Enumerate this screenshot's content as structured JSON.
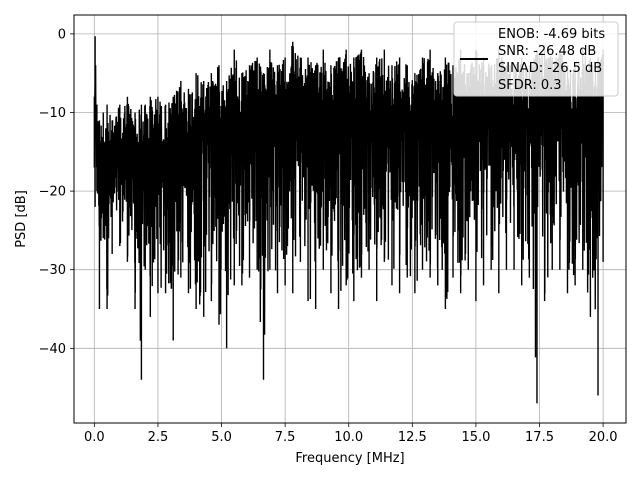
{
  "chart_data": {
    "type": "line",
    "title": "",
    "xlabel": "Frequency [MHz]",
    "ylabel": "PSD [dB]",
    "xlim": [
      -0.8,
      20.9
    ],
    "ylim": [
      -49.5,
      2.4
    ],
    "xticks": [
      0.0,
      2.5,
      5.0,
      7.5,
      10.0,
      12.5,
      15.0,
      17.5,
      20.0
    ],
    "xtick_labels": [
      "0.0",
      "2.5",
      "5.0",
      "7.5",
      "10.0",
      "12.5",
      "15.0",
      "17.5",
      "20.0"
    ],
    "yticks": [
      0,
      -10,
      -20,
      -30,
      -40
    ],
    "ytick_labels": [
      "0",
      "−10",
      "−20",
      "−30",
      "−40"
    ],
    "grid": true,
    "legend_position": "top-right",
    "line_color": "#000000",
    "series": [
      {
        "name": "ENOB: -4.69 bits\nSNR: -26.48 dB\nSINAD: -26.5 dB\nSFDR: 0.3",
        "legend_lines": [
          "ENOB: -4.69 bits",
          "SNR: -26.48 dB",
          "SINAD: -26.5 dB",
          "SFDR: 0.3"
        ],
        "x": [
          0.0,
          0.03,
          0.1,
          0.2,
          0.35,
          0.5,
          0.7,
          1.0,
          1.3,
          1.6,
          1.85,
          2.0,
          2.2,
          2.5,
          2.8,
          3.1,
          3.4,
          3.7,
          4.0,
          4.3,
          4.6,
          4.9,
          5.2,
          5.5,
          5.8,
          6.1,
          6.4,
          6.65,
          6.9,
          7.2,
          7.5,
          7.8,
          8.1,
          8.4,
          8.7,
          9.0,
          9.3,
          9.6,
          9.9,
          10.2,
          10.5,
          10.8,
          11.1,
          11.4,
          11.7,
          12.0,
          12.3,
          12.6,
          12.9,
          13.2,
          13.5,
          13.8,
          14.1,
          14.4,
          14.7,
          15.0,
          15.3,
          15.6,
          15.9,
          16.2,
          16.5,
          16.8,
          17.1,
          17.4,
          17.7,
          18.0,
          18.3,
          18.6,
          18.9,
          19.2,
          19.5,
          19.8,
          20.0
        ],
        "upper": [
          -8,
          -0.3,
          -9,
          -11,
          -10,
          -9,
          -11,
          -9,
          -8,
          -10,
          -9,
          -9,
          -8,
          -8,
          -9,
          -8,
          -6,
          -7,
          -5,
          -6,
          -5,
          -4,
          -6,
          -2,
          -5,
          -4,
          -3,
          -5,
          -2,
          -4,
          -3,
          -1,
          -3,
          -3,
          -4,
          -2,
          -4,
          -3,
          -2,
          -3,
          -2,
          -5,
          -3,
          -2,
          -4,
          -3,
          -4,
          -5,
          -3,
          -2,
          -5,
          -3,
          -4,
          -2,
          -5,
          -2,
          -3,
          -4,
          -2,
          -4,
          -4,
          -3,
          -4,
          -2,
          -2,
          -3,
          -2,
          -4,
          -4,
          -2,
          -3,
          -3,
          -2
        ],
        "lower": [
          -17,
          -22,
          -20,
          -35,
          -26,
          -35,
          -28,
          -27,
          -29,
          -35,
          -44,
          -30,
          -36,
          -33,
          -33,
          -39,
          -31,
          -33,
          -35,
          -36,
          -34,
          -37,
          -40,
          -32,
          -32,
          -31,
          -30,
          -44,
          -30,
          -33,
          -32,
          -33,
          -29,
          -34,
          -35,
          -30,
          -33,
          -35,
          -32,
          -34,
          -31,
          -30,
          -34,
          -29,
          -32,
          -33,
          -31,
          -33,
          -30,
          -31,
          -32,
          -35,
          -31,
          -33,
          -30,
          -34,
          -32,
          -30,
          -33,
          -30,
          -30,
          -32,
          -31,
          -47,
          -34,
          -30,
          -30,
          -33,
          -32,
          -30,
          -36,
          -46,
          -29
        ]
      }
    ]
  }
}
